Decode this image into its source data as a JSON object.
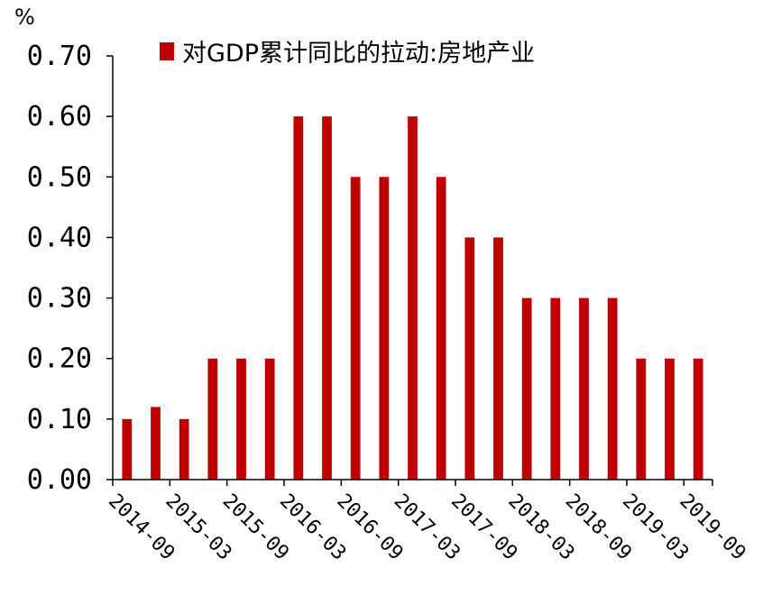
{
  "colors": {
    "bar": "#C00000",
    "axis": "#000000",
    "background": "#ffffff"
  },
  "chart_data": {
    "type": "bar",
    "ylabel": "%",
    "ylim": [
      0,
      0.7
    ],
    "y_ticks": [
      "0.00",
      "0.10",
      "0.20",
      "0.30",
      "0.40",
      "0.50",
      "0.60",
      "0.70"
    ],
    "grid": false,
    "legend_position": "top",
    "x_tick_labels": [
      "2014-09",
      "2015-03",
      "2015-09",
      "2016-03",
      "2016-09",
      "2017-03",
      "2017-09",
      "2018-03",
      "2018-09",
      "2019-03",
      "2019-09"
    ],
    "categories": [
      "2014-09",
      "2014-12",
      "2015-03",
      "2015-06",
      "2015-09",
      "2015-12",
      "2016-03",
      "2016-06",
      "2016-09",
      "2016-12",
      "2017-03",
      "2017-06",
      "2017-09",
      "2017-12",
      "2018-03",
      "2018-06",
      "2018-09",
      "2018-12",
      "2019-03",
      "2019-06",
      "2019-09"
    ],
    "series": [
      {
        "name": "对GDP累计同比的拉动:房地产业",
        "values": [
          0.1,
          0.12,
          0.1,
          0.2,
          0.2,
          0.2,
          0.6,
          0.6,
          0.5,
          0.5,
          0.6,
          0.5,
          0.4,
          0.4,
          0.3,
          0.3,
          0.3,
          0.3,
          0.2,
          0.2,
          0.2
        ]
      }
    ]
  }
}
